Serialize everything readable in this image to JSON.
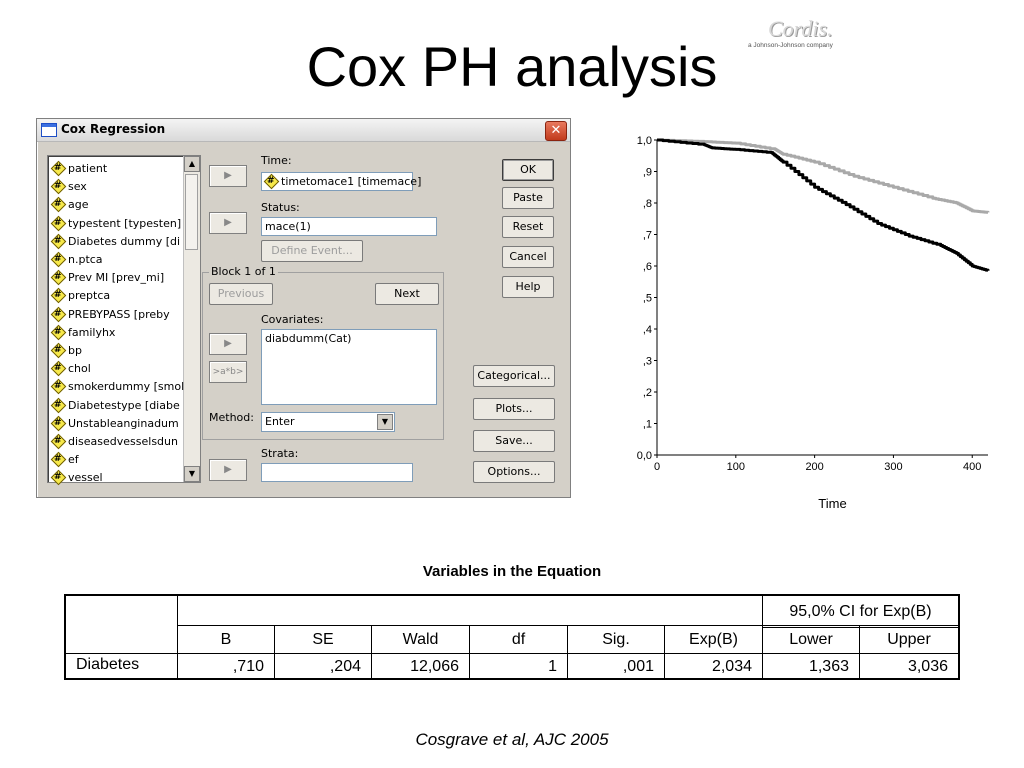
{
  "slide": {
    "title": "Cox PH analysis",
    "citation": "Cosgrave et al, AJC 2005"
  },
  "logo": {
    "main": "Cordis.",
    "sub": "a Johnson-Johnson company"
  },
  "dialog": {
    "title": "Cox Regression",
    "close_label": "✕",
    "variables": [
      "patient",
      "sex",
      "age",
      "typestent [typesten]",
      "Diabetes dummy [di",
      "n.ptca",
      "Prev MI [prev_mi]",
      "preptca",
      "PREBYPASS [preby",
      "familyhx",
      "bp",
      "chol",
      "smokerdummy [smol",
      "Diabetestype [diabe",
      "Unstableanginadum",
      "diseasedvesselsdun",
      "ef",
      "vessel"
    ],
    "time_label": "Time:",
    "time_value": "timetomace1 [timemace]",
    "status_label": "Status:",
    "status_value": "mace(1)",
    "define_event_label": "Define Event...",
    "block_label": "Block 1 of 1",
    "previous_label": "Previous",
    "next_label": "Next",
    "covariates_label": "Covariates:",
    "covariates": [
      "diabdumm(Cat)"
    ],
    "interaction_label": ">a*b>",
    "method_label": "Method:",
    "method_value": "Enter",
    "strata_label": "Strata:",
    "buttons": {
      "ok": "OK",
      "paste": "Paste",
      "reset": "Reset",
      "cancel": "Cancel",
      "help": "Help",
      "categorical": "Categorical...",
      "plots": "Plots...",
      "save": "Save...",
      "options": "Options..."
    }
  },
  "chart_data": {
    "type": "line",
    "xlabel": "Time",
    "ylabel": "",
    "xlim": [
      0,
      420
    ],
    "ylim": [
      0,
      1.0
    ],
    "x_ticks": [
      "0",
      "100",
      "200",
      "300",
      "400"
    ],
    "y_ticks": [
      "0,0",
      ",1",
      ",2",
      ",3",
      ",4",
      ",5",
      ",6",
      ",7",
      ",8",
      ",9",
      "1,0"
    ],
    "grid": false,
    "series": [
      {
        "color": "#a9a9a9",
        "points": [
          [
            0,
            1.0
          ],
          [
            60,
            0.995
          ],
          [
            100,
            0.99
          ],
          [
            150,
            0.97
          ],
          [
            160,
            0.955
          ],
          [
            200,
            0.93
          ],
          [
            250,
            0.885
          ],
          [
            300,
            0.85
          ],
          [
            350,
            0.815
          ],
          [
            380,
            0.8
          ],
          [
            400,
            0.775
          ],
          [
            420,
            0.77
          ]
        ]
      },
      {
        "color": "#000000",
        "points": [
          [
            0,
            1.0
          ],
          [
            60,
            0.985
          ],
          [
            70,
            0.975
          ],
          [
            100,
            0.97
          ],
          [
            145,
            0.96
          ],
          [
            160,
            0.93
          ],
          [
            200,
            0.85
          ],
          [
            240,
            0.795
          ],
          [
            280,
            0.735
          ],
          [
            320,
            0.695
          ],
          [
            360,
            0.665
          ],
          [
            380,
            0.64
          ],
          [
            400,
            0.6
          ],
          [
            420,
            0.585
          ]
        ]
      }
    ]
  },
  "results_table": {
    "title": "Variables in the Equation",
    "ci_header": "95,0% CI for Exp(B)",
    "headers": [
      "B",
      "SE",
      "Wald",
      "df",
      "Sig.",
      "Exp(B)",
      "Lower",
      "Upper"
    ],
    "rows": [
      {
        "label": "Diabetes",
        "values": [
          ",710",
          ",204",
          "12,066",
          "1",
          ",001",
          "2,034",
          "1,363",
          "3,036"
        ]
      }
    ]
  }
}
